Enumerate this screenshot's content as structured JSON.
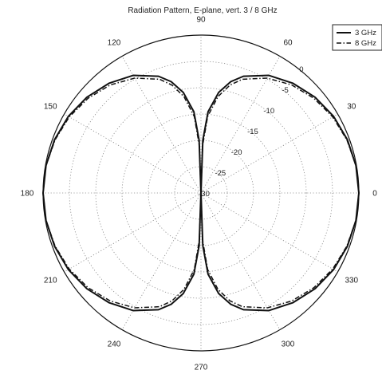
{
  "chart_data": {
    "type": "line",
    "title": "Radiation Pattern, E-plane, vert. 3 / 8 GHz",
    "angle_ticks": [
      "0",
      "30",
      "60",
      "90",
      "120",
      "150",
      "180",
      "210",
      "240",
      "270",
      "300",
      "330"
    ],
    "angle_tick_values": [
      0,
      30,
      60,
      90,
      120,
      150,
      180,
      210,
      240,
      270,
      300,
      330
    ],
    "radial_ticks": [
      "0",
      "-5",
      "-10",
      "-15",
      "-20",
      "-25",
      "-30"
    ],
    "radial_tick_values": [
      0,
      -5,
      -10,
      -15,
      -20,
      -25,
      -30
    ],
    "rlim": [
      -30,
      0
    ],
    "grid": true,
    "legend_position": "top-right",
    "angle_unit": "degrees",
    "series": [
      {
        "name": "3 GHz",
        "line_style": "solid",
        "color": "#111111",
        "theta": [
          0,
          10,
          20,
          30,
          40,
          50,
          60,
          70,
          75,
          80,
          85,
          88,
          90,
          92,
          95,
          100,
          105,
          110,
          120,
          130,
          140,
          150,
          160,
          170,
          180,
          190,
          200,
          210,
          220,
          230,
          240,
          250,
          255,
          260,
          265,
          268,
          270,
          272,
          275,
          280,
          285,
          290,
          300,
          310,
          320,
          330,
          340,
          350
        ],
        "r": [
          0,
          -0.1,
          -0.4,
          -0.9,
          -1.7,
          -2.8,
          -4.2,
          -6.4,
          -8.1,
          -10.6,
          -14.5,
          -20.0,
          -30.0,
          -20.0,
          -14.5,
          -10.6,
          -8.1,
          -6.4,
          -4.2,
          -2.8,
          -1.7,
          -0.9,
          -0.4,
          -0.1,
          0,
          -0.1,
          -0.4,
          -0.9,
          -1.7,
          -2.8,
          -4.2,
          -6.4,
          -8.1,
          -10.6,
          -14.5,
          -20.0,
          -30.0,
          -20.0,
          -14.5,
          -10.6,
          -8.1,
          -6.4,
          -4.2,
          -2.8,
          -1.7,
          -0.9,
          -0.4,
          -0.1
        ]
      },
      {
        "name": "8 GHz",
        "line_style": "dash-dot",
        "color": "#111111",
        "theta": [
          0,
          10,
          20,
          30,
          40,
          50,
          60,
          70,
          75,
          80,
          85,
          88,
          90,
          92,
          95,
          100,
          105,
          110,
          120,
          130,
          140,
          150,
          160,
          170,
          180,
          190,
          200,
          210,
          220,
          230,
          240,
          250,
          255,
          260,
          265,
          268,
          270,
          272,
          275,
          280,
          285,
          290,
          300,
          310,
          320,
          330,
          340,
          350
        ],
        "r": [
          0,
          -0.1,
          -0.5,
          -1.1,
          -2.0,
          -3.2,
          -4.8,
          -7.0,
          -8.8,
          -11.4,
          -15.4,
          -21.0,
          -30.0,
          -21.0,
          -15.4,
          -11.4,
          -8.8,
          -7.0,
          -4.8,
          -3.2,
          -2.0,
          -1.1,
          -0.5,
          -0.1,
          0,
          -0.1,
          -0.5,
          -1.1,
          -2.0,
          -3.2,
          -4.8,
          -7.0,
          -8.8,
          -11.4,
          -15.4,
          -21.0,
          -30.0,
          -21.0,
          -15.4,
          -11.4,
          -8.8,
          -7.0,
          -4.8,
          -3.2,
          -2.0,
          -1.1,
          -0.5,
          -0.1
        ]
      }
    ]
  }
}
